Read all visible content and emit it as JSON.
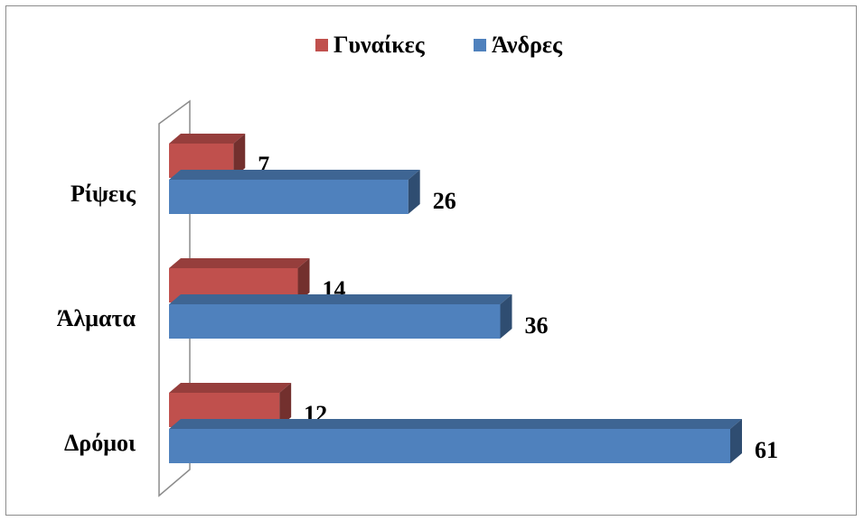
{
  "chart_data": {
    "type": "bar",
    "orientation": "horizontal",
    "three_d": true,
    "categories": [
      "Ρίψεις",
      "Άλματα",
      "Δρόμοι"
    ],
    "series": [
      {
        "name": "Γυναίκες",
        "color": "#c0504d",
        "values": [
          7,
          14,
          12
        ]
      },
      {
        "name": "Άνδρες",
        "color": "#4f81bd",
        "values": [
          26,
          36,
          61
        ]
      }
    ],
    "xlim": [
      0,
      61
    ],
    "grid": false,
    "legend_position": "top",
    "data_labels": true
  }
}
